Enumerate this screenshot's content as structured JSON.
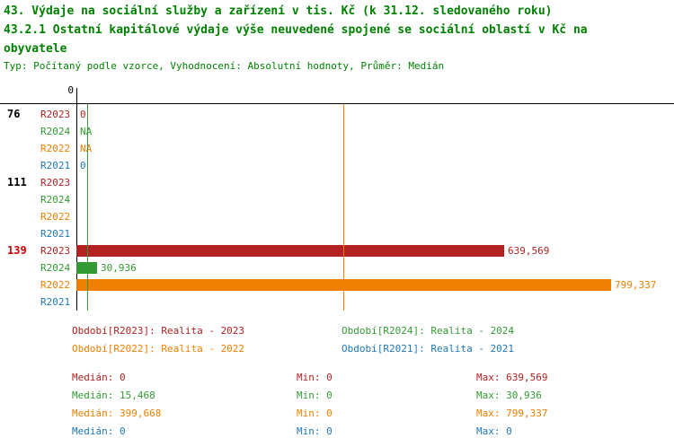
{
  "title": {
    "line1": "43. Výdaje na sociální služby a zařízení v tis. Kč (k 31.12. sledovaného roku)",
    "line2": "43.2.1 Ostatní kapitálové výdaje výše neuvedené spojené se sociální oblastí v Kč na obyvatele",
    "subtitle": "Typ: Počítaný podle vzorce, Vyhodnocení: Absolutní hodnoty, Průměr: Medián"
  },
  "colors": {
    "title_green": "#008000",
    "r2023": "#b22222",
    "r2024": "#339933",
    "r2022": "#ee7f00",
    "r2021": "#1f77b4",
    "group_highlight": "#cc0000",
    "axis": "#000000"
  },
  "chart_data": {
    "type": "bar",
    "orientation": "horizontal",
    "axis_tick_label": "0",
    "x_max": 799337,
    "series_order": [
      "R2023",
      "R2024",
      "R2022",
      "R2021"
    ],
    "groups": [
      {
        "id": "76",
        "highlight": false,
        "rows": [
          {
            "series": "R2023",
            "value": 0,
            "label": "0"
          },
          {
            "series": "R2024",
            "value": null,
            "label": "NA"
          },
          {
            "series": "R2022",
            "value": null,
            "label": "NA"
          },
          {
            "series": "R2021",
            "value": 0,
            "label": "0"
          }
        ]
      },
      {
        "id": "111",
        "highlight": false,
        "rows": [
          {
            "series": "R2023",
            "value": 0,
            "label": ""
          },
          {
            "series": "R2024",
            "value": 0,
            "label": ""
          },
          {
            "series": "R2022",
            "value": 0,
            "label": ""
          },
          {
            "series": "R2021",
            "value": 0,
            "label": ""
          }
        ]
      },
      {
        "id": "139",
        "highlight": true,
        "rows": [
          {
            "series": "R2023",
            "value": 639569,
            "label": "639,569"
          },
          {
            "series": "R2024",
            "value": 30936,
            "label": "30,936"
          },
          {
            "series": "R2022",
            "value": 799337,
            "label": "799,337"
          },
          {
            "series": "R2021",
            "value": 0,
            "label": ""
          }
        ]
      }
    ],
    "median_lines": [
      {
        "series": "R2024",
        "value": 15468
      },
      {
        "series": "R2022",
        "value": 399668
      }
    ]
  },
  "legend": [
    {
      "series": "R2023",
      "text": "Období[R2023]: Realita - 2023"
    },
    {
      "series": "R2024",
      "text": "Období[R2024]: Realita - 2024"
    },
    {
      "series": "R2022",
      "text": "Období[R2022]: Realita - 2022"
    },
    {
      "series": "R2021",
      "text": "Období[R2021]: Realita - 2021"
    }
  ],
  "stats": [
    {
      "series": "R2023",
      "median": "Medián: 0",
      "min": "Min: 0",
      "max": "Max: 639,569"
    },
    {
      "series": "R2024",
      "median": "Medián: 15,468",
      "min": "Min: 0",
      "max": "Max: 30,936"
    },
    {
      "series": "R2022",
      "median": "Medián: 399,668",
      "min": "Min: 0",
      "max": "Max: 799,337"
    },
    {
      "series": "R2021",
      "median": "Medián: 0",
      "min": "Min: 0",
      "max": "Max: 0"
    }
  ]
}
